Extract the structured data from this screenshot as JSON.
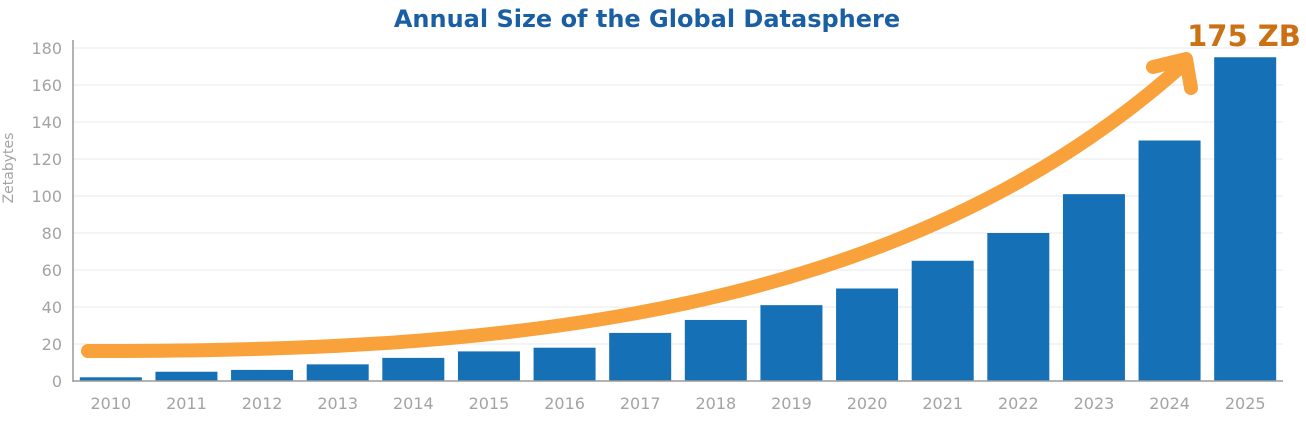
{
  "chart_data": {
    "type": "bar",
    "title": "Annual Size of the Global Datasphere",
    "xlabel": "",
    "ylabel": "Zetabytes",
    "categories": [
      "2010",
      "2011",
      "2012",
      "2013",
      "2014",
      "2015",
      "2016",
      "2017",
      "2018",
      "2019",
      "2020",
      "2021",
      "2022",
      "2023",
      "2024",
      "2025"
    ],
    "values": [
      2,
      5,
      6,
      9,
      12.5,
      16,
      18,
      26,
      33,
      41,
      50,
      65,
      80,
      101,
      130,
      175
    ],
    "ylim": [
      0,
      180
    ],
    "yticks": [
      0,
      20,
      40,
      60,
      80,
      100,
      120,
      140,
      160,
      180
    ],
    "grid": true,
    "annotation": {
      "text": "175 ZB"
    },
    "colors": {
      "bar": "#1570b5",
      "title": "#1a5fa3",
      "arrow": "#f9a13a",
      "annotation": "#cc7014",
      "grid": "#e8e8e8",
      "axis": "#9a9a9a",
      "tick": "#a3a3a3"
    }
  }
}
